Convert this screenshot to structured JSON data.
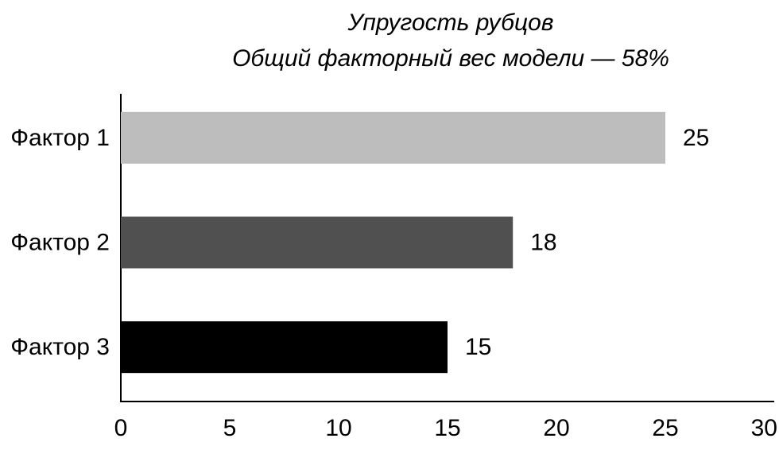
{
  "chart_data": {
    "type": "barh",
    "title": "Упругость рубцов",
    "subtitle": "Общий факторный вес модели — 58%",
    "categories": [
      "Фактор 1",
      "Фактор 2",
      "Фактор 3"
    ],
    "values": [
      25,
      18,
      15
    ],
    "colors": [
      "#bdbdbd",
      "#505050",
      "#000000"
    ],
    "xlim": [
      0,
      30
    ],
    "xticks": [
      0,
      5,
      10,
      15,
      20,
      25,
      30
    ],
    "grid": false
  }
}
